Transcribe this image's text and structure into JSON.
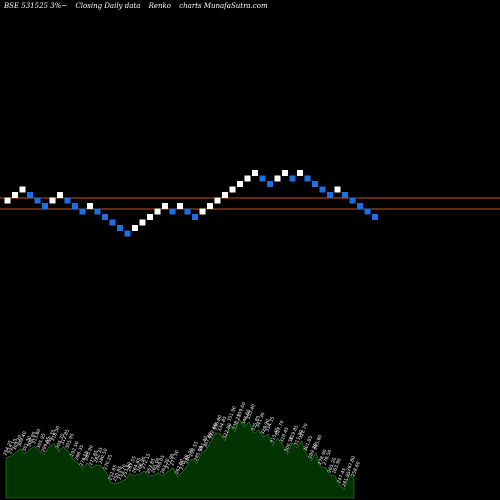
{
  "header": {
    "symbol": "BSE 531525 3%~",
    "chart_kind": "Closing Daily data",
    "brick_label": "Renko",
    "site": "charts MunafaSutra.com"
  },
  "colors": {
    "background": "#000000",
    "up_brick": "#ffffff",
    "down_brick": "#1e6fe0",
    "reference_line": "#c8551e",
    "volume_area": "#003300",
    "volume_outline": "#2e8b2e",
    "label_text": "#ffffff"
  },
  "chart_data": [
    {
      "type": "renko",
      "title": "",
      "brick_directions": [
        "up",
        "up",
        "up",
        "down",
        "down",
        "down",
        "up",
        "up",
        "down",
        "down",
        "down",
        "up",
        "down",
        "down",
        "down",
        "down",
        "down",
        "up",
        "up",
        "up",
        "up",
        "up",
        "down",
        "up",
        "down",
        "down",
        "up",
        "up",
        "up",
        "up",
        "up",
        "up",
        "up",
        "up",
        "down",
        "down",
        "up",
        "up",
        "down",
        "up",
        "down",
        "down",
        "down",
        "down",
        "up",
        "down",
        "down",
        "down",
        "down",
        "down"
      ],
      "reference_lines": [
        2,
        0
      ],
      "grid": false
    },
    {
      "type": "area",
      "title": "",
      "price_labels": [
        "294.25",
        "297.15",
        "303.20",
        "309.40",
        "301.30",
        "308.95",
        "313.60",
        "305.95",
        "299.95",
        "312.35",
        "318.50",
        "305.75",
        "312.85",
        "305.95",
        "292.50",
        "286.35",
        "276.55",
        "285.90",
        "277.65",
        "282.35",
        "280.50",
        "270.25",
        "252.65",
        "250.85",
        "253.70",
        "257.60",
        "267.55",
        "264.85",
        "266.90",
        "272.15",
        "263.85",
        "265.00",
        "269.05",
        "263.70",
        "271.90",
        "277.50",
        "262.60",
        "270.30",
        "280.70",
        "292.55",
        "285.05",
        "301.40",
        "307.80",
        "322.60",
        "336.80",
        "334.85",
        "322.90",
        "351.90",
        "338.25",
        "359.00",
        "346.65",
        "355.40",
        "335.85",
        "341.30",
        "329.90",
        "334.35",
        "315.45",
        "327.70",
        "316.45",
        "300.50",
        "319.85",
        "311.30",
        "322.70",
        "301.85",
        "289.20",
        "303.60",
        "278.90",
        "278.50",
        "265.20",
        "263.90",
        "247.45",
        "241.95",
        "267.80",
        "258.60"
      ]
    }
  ]
}
